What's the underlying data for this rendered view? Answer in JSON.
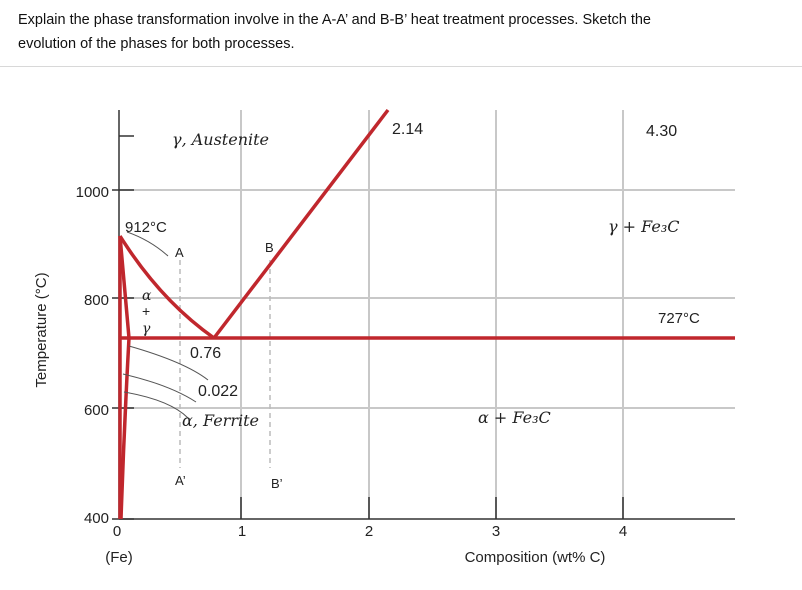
{
  "question": {
    "line1": "Explain the phase transformation involve in the A-A’ and B-B’ heat treatment processes. Sketch the",
    "line2": "evolution of the phases for both processes."
  },
  "diagram": {
    "y_axis_title": "Temperature (°C)",
    "x_axis_title": "Composition (wt% C)",
    "y_ticks": [
      "1000",
      "800",
      "600",
      "400"
    ],
    "x_ticks": [
      "0",
      "1",
      "2",
      "3",
      "4"
    ],
    "fe_label": "(Fe)",
    "line_color": "#c0272d",
    "grid_color": "#c8c8c8",
    "labels": {
      "austenite": "γ, Austenite",
      "ferrite": "α, Ferrite",
      "gamma_fe3c": "γ + Fe₃C",
      "alpha_fe3c": "α + Fe₃C",
      "alpha_gamma": [
        "α",
        "+",
        "γ"
      ],
      "t912": "912°C",
      "t727": "727°C",
      "c214": "2.14",
      "c430": "4.30",
      "c076": "0.76",
      "c0022": "0.022",
      "A": "A",
      "B": "B",
      "A_prime": "A’",
      "B_prime": "B’"
    }
  }
}
